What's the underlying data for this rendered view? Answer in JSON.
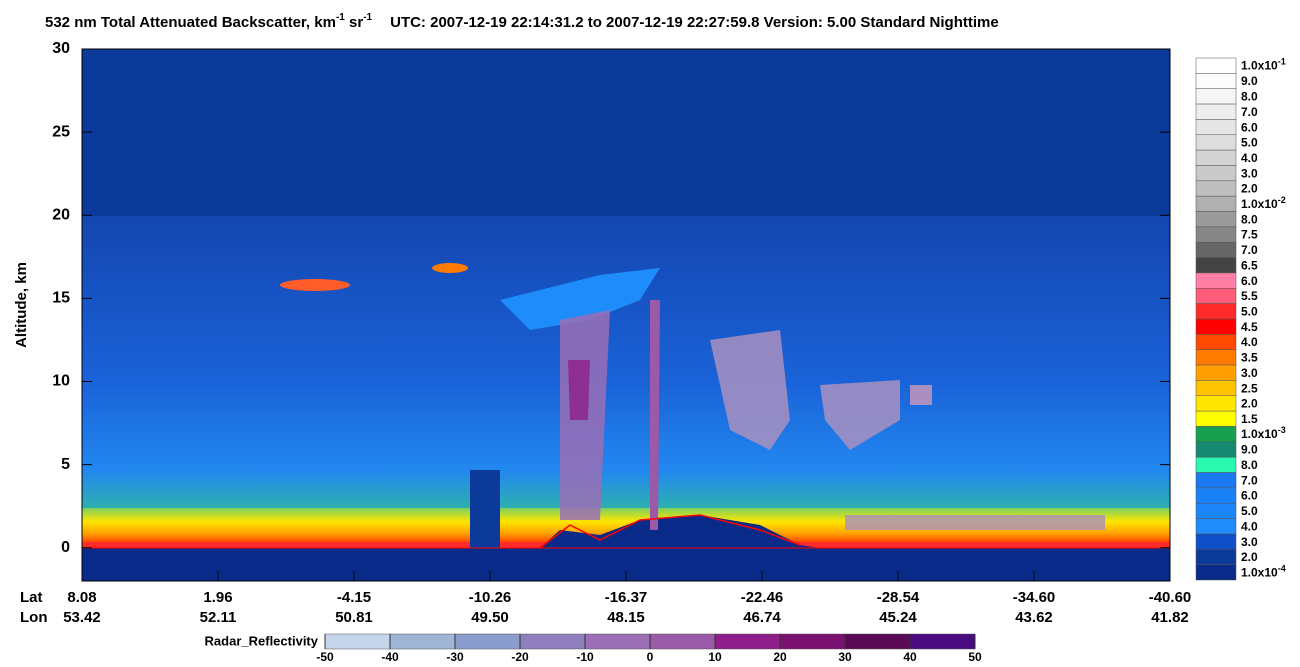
{
  "chart_data": {
    "type": "curtain",
    "title": [
      "532 nm Total Attenuated Backscatter, km",
      "-1",
      " sr",
      "-1"
    ],
    "subtitle": "UTC:  2007-12-19 22:14:31.2  to  2007-12-19 22:27:59.8    Version: 5.00  Standard  Nighttime",
    "ylabel": "Altitude, km",
    "ylim": [
      -2,
      30
    ],
    "yticks": [
      0,
      5,
      10,
      15,
      20,
      25,
      30
    ],
    "lat_label": "Lat",
    "lon_label": "Lon",
    "lat": [
      "8.08",
      "1.96",
      "-4.15",
      "-10.26",
      "-16.37",
      "-22.46",
      "-28.54",
      "-34.60",
      "-40.60"
    ],
    "lon": [
      "53.42",
      "52.11",
      "50.81",
      "49.50",
      "48.15",
      "46.74",
      "45.24",
      "43.62",
      "41.82"
    ],
    "colorbar": {
      "labels": [
        {
          "base": "1.0x10",
          "sup": "-1"
        },
        "9.0",
        "8.0",
        "7.0",
        "6.0",
        "5.0",
        "4.0",
        "3.0",
        "2.0",
        {
          "base": "1.0x10",
          "sup": "-2"
        },
        "8.0",
        "7.5",
        "7.0",
        "6.5",
        "6.0",
        "5.5",
        "5.0",
        "4.5",
        "4.0",
        "3.5",
        "3.0",
        "2.5",
        "2.0",
        "1.5",
        {
          "base": "1.0x10",
          "sup": "-3"
        },
        "9.0",
        "8.0",
        "7.0",
        "6.0",
        "5.0",
        "4.0",
        "3.0",
        "2.0",
        {
          "base": "1.0x10",
          "sup": "-4"
        }
      ],
      "colors": [
        "#ffffff",
        "#fbfbfb",
        "#f5f5f5",
        "#eeeeee",
        "#e6e6e6",
        "#dddddd",
        "#d3d3d3",
        "#c9c9c9",
        "#bebebe",
        "#b0b0b0",
        "#9a9a9a",
        "#868686",
        "#666666",
        "#444444",
        "#ff7fa5",
        "#ff5c7a",
        "#ff2a2a",
        "#ff0000",
        "#ff4a00",
        "#ff7a00",
        "#ffa000",
        "#ffc400",
        "#ffe600",
        "#ffff00",
        "#16a050",
        "#158a70",
        "#28f8b0",
        "#1a78f0",
        "#1a80f5",
        "#1c86f8",
        "#1e8cfa",
        "#0f4fc8",
        "#0c3a9a",
        "#0a2a8a"
      ]
    },
    "radar": {
      "label": "Radar_Reflectivity",
      "lim": [
        -50,
        50
      ],
      "ticks": [
        -50,
        -40,
        -30,
        -20,
        -10,
        0,
        10,
        20,
        30,
        40,
        50
      ],
      "colors": [
        "#c6d6ea",
        "#a0b4d6",
        "#8a9dcc",
        "#8f7fbf",
        "#9a6fb5",
        "#9a5aa8",
        "#8e1f8a",
        "#7a1070",
        "#5a0a55",
        "#4a0a80"
      ]
    }
  }
}
